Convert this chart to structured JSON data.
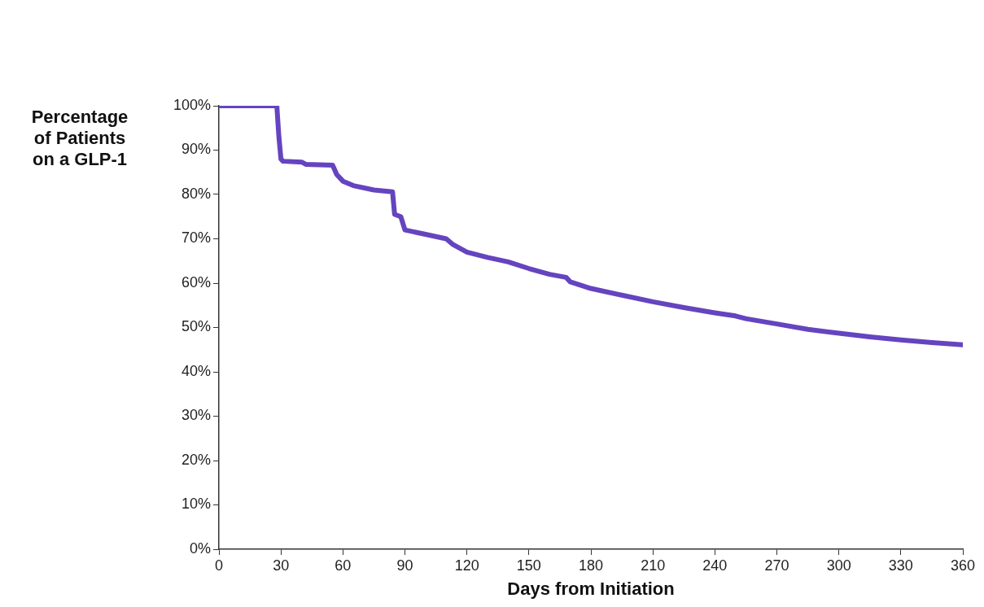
{
  "chart_data": {
    "type": "line",
    "xlabel": "Days from Initiation",
    "ylabel": "Percentage\nof Patients\non a GLP-1",
    "xlim": [
      0,
      360
    ],
    "xticks": [
      0,
      30,
      60,
      90,
      120,
      150,
      180,
      210,
      240,
      270,
      300,
      330,
      360
    ],
    "ylim": [
      0,
      100
    ],
    "yticks": [
      {
        "value": 0,
        "label": "0%"
      },
      {
        "value": 10,
        "label": "10%"
      },
      {
        "value": 20,
        "label": "20%"
      },
      {
        "value": 30,
        "label": "30%"
      },
      {
        "value": 40,
        "label": "40%"
      },
      {
        "value": 50,
        "label": "50%"
      },
      {
        "value": 60,
        "label": "60%"
      },
      {
        "value": 70,
        "label": "70%"
      },
      {
        "value": 80,
        "label": "80%"
      },
      {
        "value": 90,
        "label": "90%"
      },
      {
        "value": 100,
        "label": "100%"
      }
    ],
    "grid": false,
    "legend": false,
    "marker": "none",
    "line_style": "solid",
    "series": [
      {
        "color": "#6544c0",
        "x": [
          0,
          28,
          29,
          30,
          31,
          40,
          42,
          55,
          57,
          60,
          65,
          75,
          84,
          85,
          88,
          90,
          100,
          110,
          113,
          120,
          130,
          140,
          150,
          160,
          168,
          170,
          180,
          195,
          210,
          225,
          240,
          250,
          255,
          270,
          285,
          300,
          315,
          330,
          345,
          360
        ],
        "values": [
          100,
          100,
          93,
          88,
          87.5,
          87.3,
          86.8,
          86.6,
          84.5,
          83,
          82,
          81,
          80.6,
          75.5,
          75,
          72,
          71,
          70,
          68.8,
          67,
          65.8,
          64.8,
          63.3,
          62,
          61.3,
          60.3,
          58.8,
          57.3,
          55.8,
          54.5,
          53.3,
          52.6,
          52,
          50.8,
          49.6,
          48.7,
          47.9,
          47.2,
          46.6,
          46.1
        ]
      }
    ]
  }
}
